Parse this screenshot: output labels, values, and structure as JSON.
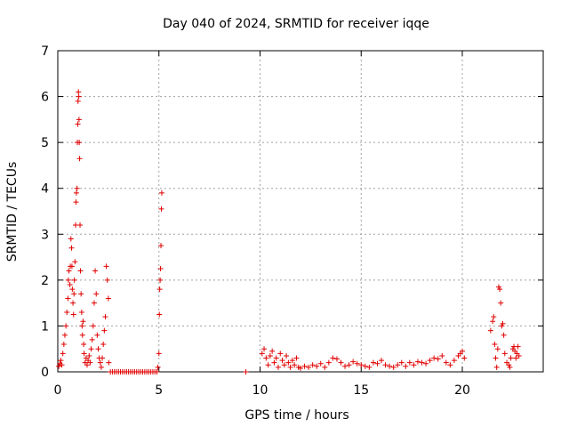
{
  "chart_data": {
    "type": "scatter",
    "title": "Day 040 of 2024, SRMTID for receiver iqqe",
    "xlabel": "GPS time / hours",
    "ylabel": "SRMTID / TECUs",
    "xlim": [
      0,
      24
    ],
    "ylim": [
      0,
      7
    ],
    "xticks": [
      0,
      5,
      10,
      15,
      20
    ],
    "yticks": [
      0,
      1,
      2,
      3,
      4,
      5,
      6,
      7
    ],
    "grid": true,
    "marker": "+",
    "color": "#e00000",
    "series": [
      {
        "name": "SRMTID",
        "points": [
          [
            0.05,
            0.12
          ],
          [
            0.1,
            0.18
          ],
          [
            0.15,
            0.25
          ],
          [
            0.2,
            0.15
          ],
          [
            0.25,
            0.4
          ],
          [
            0.3,
            0.6
          ],
          [
            0.35,
            0.8
          ],
          [
            0.4,
            1.0
          ],
          [
            0.45,
            1.3
          ],
          [
            0.5,
            1.6
          ],
          [
            0.52,
            2.0
          ],
          [
            0.55,
            2.2
          ],
          [
            0.6,
            1.9
          ],
          [
            0.62,
            2.3
          ],
          [
            0.65,
            2.9
          ],
          [
            0.68,
            2.7
          ],
          [
            0.7,
            2.3
          ],
          [
            0.72,
            1.8
          ],
          [
            0.75,
            1.5
          ],
          [
            0.78,
            1.25
          ],
          [
            0.8,
            1.7
          ],
          [
            0.82,
            2.0
          ],
          [
            0.85,
            2.4
          ],
          [
            0.88,
            3.2
          ],
          [
            0.9,
            3.7
          ],
          [
            0.92,
            3.9
          ],
          [
            0.95,
            4.0
          ],
          [
            0.97,
            5.0
          ],
          [
            0.99,
            5.4
          ],
          [
            1.0,
            5.9
          ],
          [
            1.02,
            6.1
          ],
          [
            1.04,
            6.0
          ],
          [
            1.05,
            5.5
          ],
          [
            1.06,
            5.0
          ],
          [
            1.08,
            4.65
          ],
          [
            1.1,
            3.2
          ],
          [
            1.12,
            2.2
          ],
          [
            1.15,
            1.7
          ],
          [
            1.18,
            1.3
          ],
          [
            1.2,
            1.0
          ],
          [
            1.22,
            0.8
          ],
          [
            1.25,
            1.1
          ],
          [
            1.28,
            0.6
          ],
          [
            1.3,
            0.4
          ],
          [
            1.35,
            0.2
          ],
          [
            1.4,
            0.3
          ],
          [
            1.45,
            0.15
          ],
          [
            1.5,
            0.25
          ],
          [
            1.55,
            0.35
          ],
          [
            1.6,
            0.2
          ],
          [
            1.65,
            0.5
          ],
          [
            1.7,
            0.7
          ],
          [
            1.75,
            1.0
          ],
          [
            1.8,
            1.5
          ],
          [
            1.85,
            2.2
          ],
          [
            1.9,
            1.7
          ],
          [
            1.95,
            0.8
          ],
          [
            2.0,
            0.5
          ],
          [
            2.05,
            0.3
          ],
          [
            2.1,
            0.2
          ],
          [
            2.15,
            0.1
          ],
          [
            2.2,
            0.3
          ],
          [
            2.25,
            0.6
          ],
          [
            2.3,
            0.9
          ],
          [
            2.35,
            1.2
          ],
          [
            2.4,
            2.3
          ],
          [
            2.45,
            2.0
          ],
          [
            2.5,
            1.6
          ],
          [
            2.52,
            0.2
          ],
          [
            2.6,
            0.0
          ],
          [
            2.7,
            0.0
          ],
          [
            2.8,
            0.0
          ],
          [
            2.9,
            0.0
          ],
          [
            3.0,
            0.0
          ],
          [
            3.1,
            0.0
          ],
          [
            3.2,
            0.0
          ],
          [
            3.3,
            0.0
          ],
          [
            3.4,
            0.0
          ],
          [
            3.5,
            0.0
          ],
          [
            3.6,
            0.0
          ],
          [
            3.7,
            0.0
          ],
          [
            3.8,
            0.0
          ],
          [
            3.9,
            0.0
          ],
          [
            4.0,
            0.0
          ],
          [
            4.1,
            0.0
          ],
          [
            4.2,
            0.0
          ],
          [
            4.3,
            0.0
          ],
          [
            4.4,
            0.0
          ],
          [
            4.5,
            0.0
          ],
          [
            4.6,
            0.0
          ],
          [
            4.7,
            0.0
          ],
          [
            4.8,
            0.0
          ],
          [
            4.9,
            0.0
          ],
          [
            4.95,
            0.1
          ],
          [
            5.0,
            0.4
          ],
          [
            5.02,
            1.25
          ],
          [
            5.04,
            1.8
          ],
          [
            5.06,
            2.0
          ],
          [
            5.08,
            2.25
          ],
          [
            5.1,
            2.75
          ],
          [
            5.12,
            3.55
          ],
          [
            5.14,
            3.9
          ],
          [
            9.3,
            0.0
          ],
          [
            10.1,
            0.4
          ],
          [
            10.2,
            0.5
          ],
          [
            10.3,
            0.3
          ],
          [
            10.4,
            0.15
          ],
          [
            10.5,
            0.35
          ],
          [
            10.6,
            0.45
          ],
          [
            10.7,
            0.2
          ],
          [
            10.8,
            0.3
          ],
          [
            10.9,
            0.1
          ],
          [
            11.0,
            0.4
          ],
          [
            11.1,
            0.25
          ],
          [
            11.2,
            0.15
          ],
          [
            11.3,
            0.35
          ],
          [
            11.4,
            0.2
          ],
          [
            11.5,
            0.1
          ],
          [
            11.6,
            0.25
          ],
          [
            11.7,
            0.15
          ],
          [
            11.8,
            0.3
          ],
          [
            11.9,
            0.1
          ],
          [
            12.0,
            0.08
          ],
          [
            12.2,
            0.12
          ],
          [
            12.4,
            0.1
          ],
          [
            12.6,
            0.15
          ],
          [
            12.8,
            0.12
          ],
          [
            13.0,
            0.18
          ],
          [
            13.2,
            0.1
          ],
          [
            13.4,
            0.2
          ],
          [
            13.6,
            0.3
          ],
          [
            13.8,
            0.28
          ],
          [
            14.0,
            0.2
          ],
          [
            14.2,
            0.12
          ],
          [
            14.4,
            0.15
          ],
          [
            14.6,
            0.22
          ],
          [
            14.8,
            0.18
          ],
          [
            15.0,
            0.15
          ],
          [
            15.2,
            0.12
          ],
          [
            15.4,
            0.1
          ],
          [
            15.6,
            0.2
          ],
          [
            15.8,
            0.18
          ],
          [
            16.0,
            0.25
          ],
          [
            16.2,
            0.15
          ],
          [
            16.4,
            0.12
          ],
          [
            16.6,
            0.1
          ],
          [
            16.8,
            0.15
          ],
          [
            17.0,
            0.2
          ],
          [
            17.2,
            0.12
          ],
          [
            17.4,
            0.2
          ],
          [
            17.6,
            0.15
          ],
          [
            17.8,
            0.22
          ],
          [
            18.0,
            0.2
          ],
          [
            18.2,
            0.18
          ],
          [
            18.4,
            0.25
          ],
          [
            18.6,
            0.3
          ],
          [
            18.8,
            0.28
          ],
          [
            19.0,
            0.35
          ],
          [
            19.2,
            0.2
          ],
          [
            19.4,
            0.15
          ],
          [
            19.6,
            0.25
          ],
          [
            19.8,
            0.35
          ],
          [
            19.9,
            0.4
          ],
          [
            20.0,
            0.45
          ],
          [
            20.1,
            0.3
          ],
          [
            21.4,
            0.9
          ],
          [
            21.5,
            1.1
          ],
          [
            21.55,
            1.2
          ],
          [
            21.6,
            0.6
          ],
          [
            21.65,
            0.3
          ],
          [
            21.7,
            0.1
          ],
          [
            21.75,
            0.5
          ],
          [
            21.8,
            1.85
          ],
          [
            21.85,
            1.8
          ],
          [
            21.9,
            1.5
          ],
          [
            21.95,
            1.0
          ],
          [
            22.0,
            1.05
          ],
          [
            22.05,
            0.8
          ],
          [
            22.1,
            0.4
          ],
          [
            22.2,
            0.2
          ],
          [
            22.3,
            0.15
          ],
          [
            22.35,
            0.1
          ],
          [
            22.4,
            0.3
          ],
          [
            22.5,
            0.5
          ],
          [
            22.55,
            0.55
          ],
          [
            22.6,
            0.45
          ],
          [
            22.65,
            0.3
          ],
          [
            22.7,
            0.4
          ],
          [
            22.75,
            0.55
          ],
          [
            22.8,
            0.35
          ]
        ]
      }
    ]
  }
}
